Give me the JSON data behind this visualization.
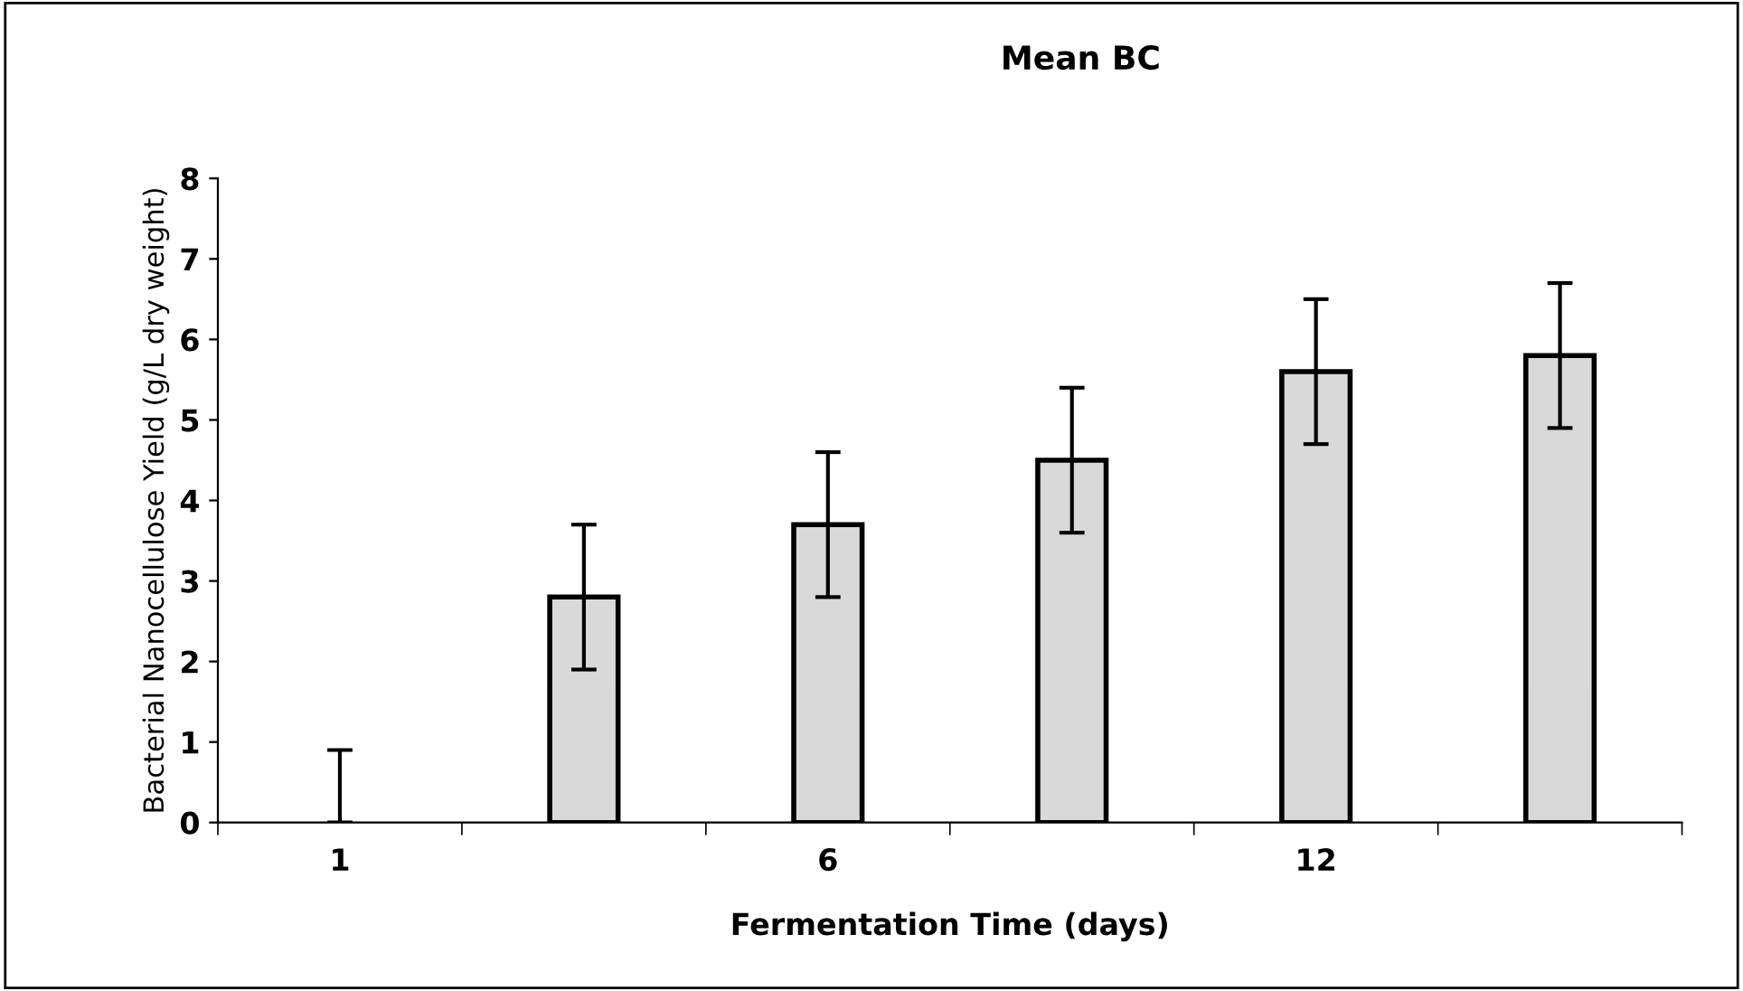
{
  "chart_data": {
    "type": "bar",
    "title": "Mean BC",
    "xlabel": "Fermentation Time (days)",
    "ylabel": "Bacterial Nanocellulose Yield (g/L dry weight)",
    "categories": [
      "1",
      null,
      "6",
      null,
      "12",
      null
    ],
    "values": [
      0,
      2.8,
      3.7,
      4.5,
      5.6,
      5.8
    ],
    "errors": [
      [
        0,
        0.9
      ],
      0.9,
      0.9,
      0.9,
      0.9,
      0.9
    ],
    "color": "#d9d9d9",
    "ylim": [
      0,
      8
    ],
    "yticks": [
      0,
      1,
      2,
      3,
      4,
      5,
      6,
      7,
      8
    ],
    "grid": false,
    "legend": false
  }
}
